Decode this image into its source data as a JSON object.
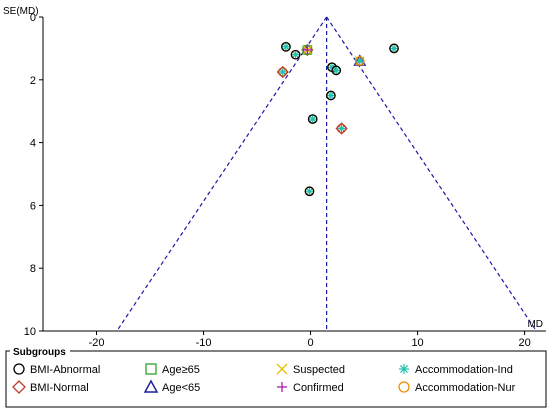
{
  "chart_data": {
    "type": "scatter",
    "title": "",
    "xlabel": "MD",
    "ylabel": "SE(MD)",
    "xlim": [
      -25,
      22
    ],
    "ylim": [
      0,
      10
    ],
    "y_inverted": true,
    "x_ticks": [
      -20,
      -10,
      0,
      10,
      20
    ],
    "y_ticks": [
      0,
      2,
      4,
      6,
      8,
      10
    ],
    "pooled_md": 1.5,
    "funnel_limits": {
      "apex": [
        1.5,
        0
      ],
      "left_at_se10": -18.1,
      "right_at_se10": 21.1
    },
    "grid": false,
    "legend_title": "Subgroups",
    "legend_position": "bottom",
    "legend": [
      {
        "key": "bmi_abnormal",
        "label": "BMI-Abnormal",
        "marker": "circle",
        "color": "#000000"
      },
      {
        "key": "bmi_normal",
        "label": "BMI-Normal",
        "marker": "diamond",
        "color": "#c0392b"
      },
      {
        "key": "age_ge65",
        "label": "Age≥65",
        "marker": "square",
        "color": "#2ca02c"
      },
      {
        "key": "age_lt65",
        "label": "Age<65",
        "marker": "triangle",
        "color": "#1f1fa0"
      },
      {
        "key": "suspected",
        "label": "Suspected",
        "marker": "x",
        "color": "#e6c200"
      },
      {
        "key": "confirmed",
        "label": "Confirmed",
        "marker": "plus",
        "color": "#b01ab0"
      },
      {
        "key": "accommodation_ind",
        "label": "Accommodation-Ind",
        "marker": "asterisk",
        "color": "#20c0b0"
      },
      {
        "key": "accommodation_nur",
        "label": "Accommodation-Nur",
        "marker": "circle",
        "color": "#f08c00"
      }
    ],
    "points": [
      {
        "x": -2.3,
        "y": 0.95,
        "groups": [
          "accommodation_ind",
          "accommodation_nur",
          "bmi_abnormal"
        ]
      },
      {
        "x": -1.4,
        "y": 1.2,
        "groups": [
          "accommodation_ind",
          "accommodation_nur",
          "bmi_abnormal"
        ]
      },
      {
        "x": -0.3,
        "y": 1.05,
        "groups": [
          "bmi_normal",
          "age_ge65",
          "suspected",
          "confirmed"
        ]
      },
      {
        "x": 4.6,
        "y": 1.4,
        "groups": [
          "age_lt65",
          "suspected",
          "accommodation_ind",
          "accommodation_nur"
        ]
      },
      {
        "x": 7.8,
        "y": 1.0,
        "groups": [
          "accommodation_ind",
          "accommodation_nur",
          "bmi_abnormal"
        ]
      },
      {
        "x": -2.6,
        "y": 1.75,
        "groups": [
          "accommodation_ind",
          "accommodation_nur",
          "bmi_normal"
        ]
      },
      {
        "x": 2.0,
        "y": 1.6,
        "groups": [
          "accommodation_ind",
          "accommodation_nur",
          "bmi_abnormal"
        ]
      },
      {
        "x": 2.4,
        "y": 1.7,
        "groups": [
          "accommodation_ind",
          "accommodation_nur",
          "bmi_abnormal"
        ]
      },
      {
        "x": 1.9,
        "y": 2.5,
        "groups": [
          "accommodation_ind",
          "accommodation_nur",
          "bmi_abnormal"
        ]
      },
      {
        "x": 0.2,
        "y": 3.25,
        "groups": [
          "accommodation_ind",
          "accommodation_nur",
          "bmi_abnormal"
        ]
      },
      {
        "x": 2.9,
        "y": 3.55,
        "groups": [
          "accommodation_ind",
          "accommodation_nur",
          "bmi_normal"
        ]
      },
      {
        "x": -0.1,
        "y": 5.55,
        "groups": [
          "accommodation_ind",
          "accommodation_nur",
          "bmi_abnormal"
        ]
      }
    ]
  }
}
